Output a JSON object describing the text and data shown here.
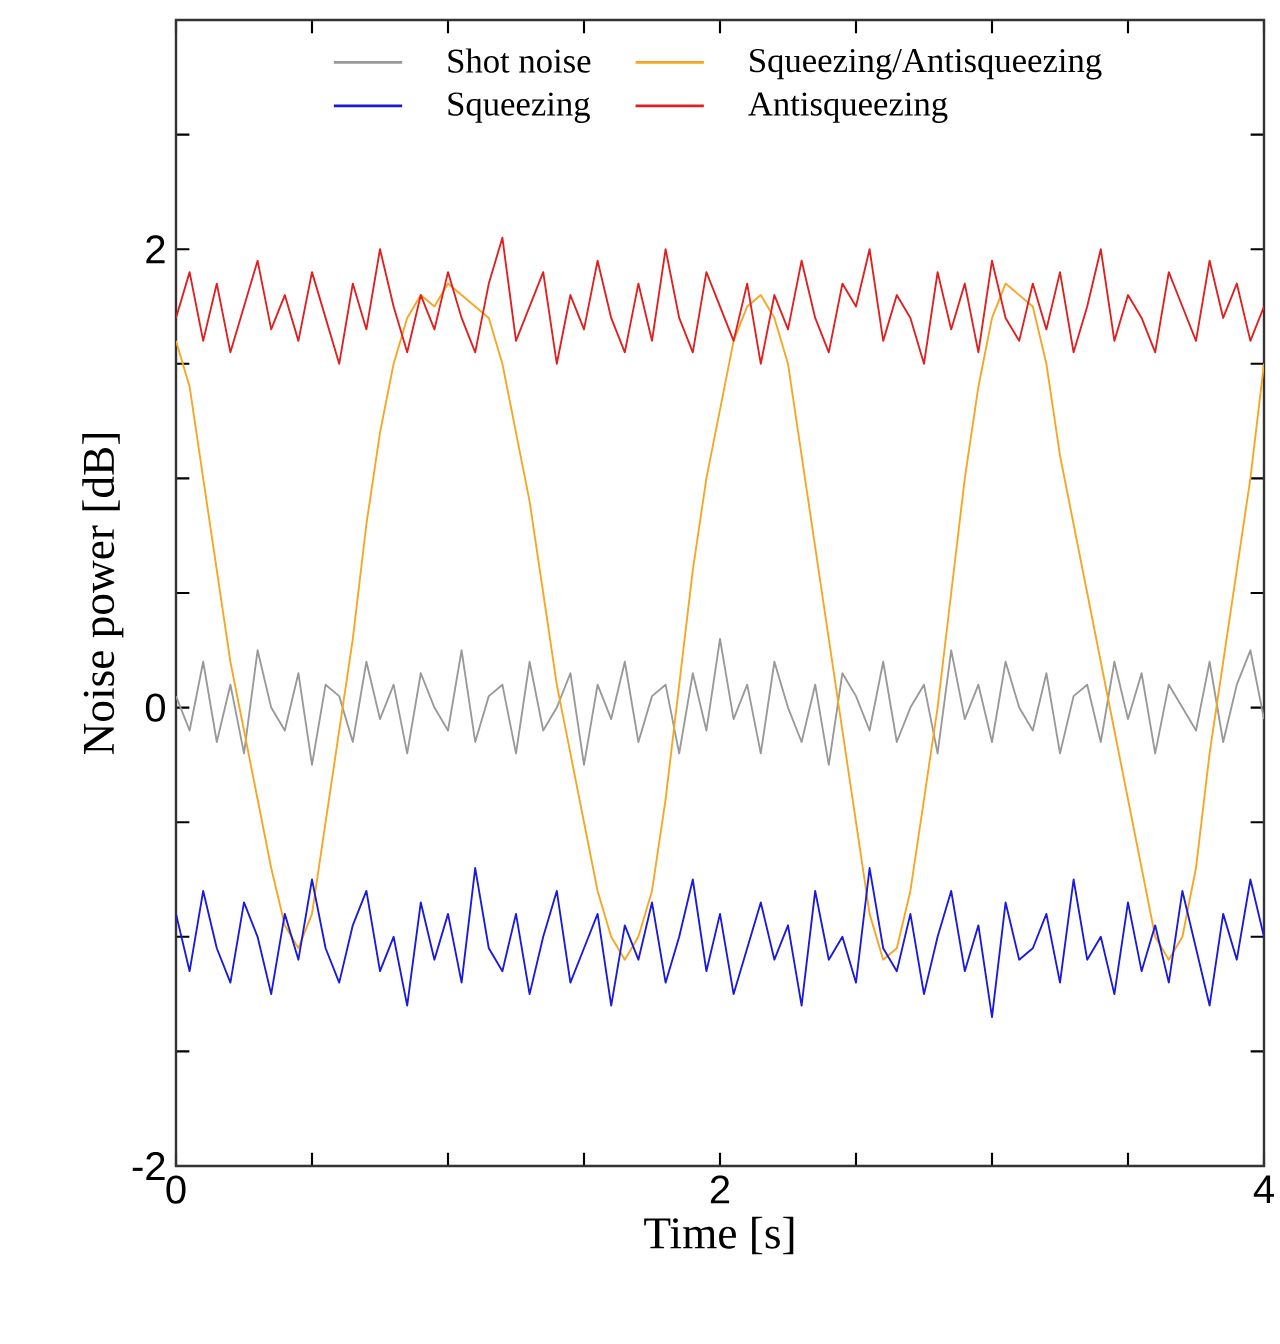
{
  "chart_data": {
    "type": "line",
    "xlabel": "Time [s]",
    "ylabel": "Noise power [dB]",
    "x": [
      0,
      0.05,
      0.1,
      0.15,
      0.2,
      0.25,
      0.3,
      0.35,
      0.4,
      0.45,
      0.5,
      0.55,
      0.6,
      0.65,
      0.7,
      0.75,
      0.8,
      0.85,
      0.9,
      0.95,
      1,
      1.05,
      1.1,
      1.15,
      1.2,
      1.25,
      1.3,
      1.35,
      1.4,
      1.45,
      1.5,
      1.55,
      1.6,
      1.65,
      1.7,
      1.75,
      1.8,
      1.85,
      1.9,
      1.95,
      2,
      2.05,
      2.1,
      2.15,
      2.2,
      2.25,
      2.3,
      2.35,
      2.4,
      2.45,
      2.5,
      2.55,
      2.6,
      2.65,
      2.7,
      2.75,
      2.8,
      2.85,
      2.9,
      2.95,
      3,
      3.05,
      3.1,
      3.15,
      3.2,
      3.25,
      3.3,
      3.35,
      3.4,
      3.45,
      3.5,
      3.55,
      3.6,
      3.65,
      3.7,
      3.75,
      3.8,
      3.85,
      3.9,
      3.95,
      4
    ],
    "series": [
      {
        "name": "Shot noise",
        "color": "#999999",
        "values": [
          0.05,
          -0.1,
          0.2,
          -0.15,
          0.1,
          -0.2,
          0.25,
          0,
          -0.1,
          0.15,
          -0.25,
          0.1,
          0.05,
          -0.15,
          0.2,
          -0.05,
          0.1,
          -0.2,
          0.15,
          0,
          -0.1,
          0.25,
          -0.15,
          0.05,
          0.1,
          -0.2,
          0.2,
          -0.1,
          0,
          0.15,
          -0.25,
          0.1,
          -0.05,
          0.2,
          -0.15,
          0.05,
          0.1,
          -0.2,
          0.15,
          -0.1,
          0.3,
          -0.05,
          0.1,
          -0.2,
          0.2,
          0,
          -0.15,
          0.1,
          -0.25,
          0.15,
          0.05,
          -0.1,
          0.2,
          -0.15,
          0,
          0.1,
          -0.2,
          0.25,
          -0.05,
          0.1,
          -0.15,
          0.2,
          0,
          -0.1,
          0.15,
          -0.2,
          0.05,
          0.1,
          -0.15,
          0.2,
          -0.05,
          0.15,
          -0.2,
          0.1,
          0,
          -0.1,
          0.2,
          -0.15,
          0.1,
          0.25,
          -0.05
        ]
      },
      {
        "name": "Squeezing/Antisqueezing",
        "color": "#f5a623",
        "values": [
          1.6,
          1.4,
          1.0,
          0.6,
          0.2,
          -0.1,
          -0.4,
          -0.7,
          -0.95,
          -1.05,
          -0.9,
          -0.5,
          -0.1,
          0.3,
          0.8,
          1.2,
          1.5,
          1.7,
          1.8,
          1.75,
          1.85,
          1.8,
          1.75,
          1.7,
          1.5,
          1.2,
          0.9,
          0.5,
          0.1,
          -0.2,
          -0.5,
          -0.8,
          -1.0,
          -1.1,
          -1.0,
          -0.8,
          -0.4,
          0.1,
          0.6,
          1.0,
          1.3,
          1.6,
          1.75,
          1.8,
          1.7,
          1.5,
          1.1,
          0.7,
          0.3,
          -0.1,
          -0.5,
          -0.9,
          -1.1,
          -1.05,
          -0.8,
          -0.4,
          0.0,
          0.5,
          1.0,
          1.4,
          1.7,
          1.85,
          1.8,
          1.75,
          1.5,
          1.1,
          0.8,
          0.5,
          0.2,
          -0.1,
          -0.4,
          -0.7,
          -1.0,
          -1.1,
          -1.0,
          -0.7,
          -0.2,
          0.2,
          0.6,
          1.0,
          1.5
        ]
      },
      {
        "name": "Squeezing",
        "color": "#1a1adc",
        "values": [
          -0.9,
          -1.15,
          -0.8,
          -1.05,
          -1.2,
          -0.85,
          -1.0,
          -1.25,
          -0.9,
          -1.1,
          -0.75,
          -1.05,
          -1.2,
          -0.95,
          -0.8,
          -1.15,
          -1.0,
          -1.3,
          -0.85,
          -1.1,
          -0.9,
          -1.2,
          -0.7,
          -1.05,
          -1.15,
          -0.9,
          -1.25,
          -1.0,
          -0.8,
          -1.2,
          -1.05,
          -0.9,
          -1.3,
          -0.95,
          -1.1,
          -0.85,
          -1.2,
          -1.0,
          -0.75,
          -1.15,
          -0.9,
          -1.25,
          -1.05,
          -0.85,
          -1.1,
          -0.95,
          -1.3,
          -0.8,
          -1.1,
          -1.0,
          -1.2,
          -0.7,
          -1.05,
          -1.15,
          -0.9,
          -1.25,
          -1.0,
          -0.8,
          -1.15,
          -0.95,
          -1.35,
          -0.85,
          -1.1,
          -1.05,
          -0.9,
          -1.2,
          -0.75,
          -1.1,
          -1.0,
          -1.25,
          -0.85,
          -1.15,
          -0.95,
          -1.2,
          -0.8,
          -1.05,
          -1.3,
          -0.9,
          -1.1,
          -0.75,
          -1.0
        ]
      },
      {
        "name": "Antisqueezing",
        "color": "#e02020",
        "values": [
          1.7,
          1.9,
          1.6,
          1.85,
          1.55,
          1.75,
          1.95,
          1.65,
          1.8,
          1.6,
          1.9,
          1.7,
          1.5,
          1.85,
          1.65,
          2.0,
          1.75,
          1.55,
          1.8,
          1.65,
          1.9,
          1.7,
          1.55,
          1.85,
          2.05,
          1.6,
          1.75,
          1.9,
          1.5,
          1.8,
          1.65,
          1.95,
          1.7,
          1.55,
          1.85,
          1.6,
          2.0,
          1.7,
          1.55,
          1.9,
          1.75,
          1.6,
          1.85,
          1.5,
          1.8,
          1.65,
          1.95,
          1.7,
          1.55,
          1.85,
          1.75,
          2.0,
          1.6,
          1.8,
          1.7,
          1.5,
          1.9,
          1.65,
          1.85,
          1.55,
          1.95,
          1.7,
          1.6,
          1.85,
          1.65,
          1.9,
          1.55,
          1.75,
          2.0,
          1.6,
          1.8,
          1.7,
          1.55,
          1.9,
          1.75,
          1.6,
          1.95,
          1.7,
          1.85,
          1.6,
          1.75
        ]
      }
    ],
    "xlim": [
      0,
      4
    ],
    "ylim": [
      -2,
      3
    ],
    "xticks": [
      0,
      {
        "value": 0.5,
        "label": null
      },
      {
        "value": 1,
        "label": null
      },
      {
        "value": 1.5,
        "label": null
      },
      2,
      {
        "value": 2.5,
        "label": null
      },
      {
        "value": 3,
        "label": null
      },
      {
        "value": 3.5,
        "label": null
      },
      4
    ],
    "yticks": [
      -2,
      {
        "value": -1.5,
        "label": null
      },
      {
        "value": -1,
        "label": null
      },
      {
        "value": -0.5,
        "label": null
      },
      0,
      {
        "value": 0.5,
        "label": null
      },
      {
        "value": 1,
        "label": null
      },
      {
        "value": 1.5,
        "label": null
      },
      2,
      {
        "value": 2.5,
        "label": null
      },
      {
        "value": 3,
        "label": null
      }
    ],
    "legend": "top",
    "grid": false,
    "marker": "none",
    "line_style": "solid"
  }
}
